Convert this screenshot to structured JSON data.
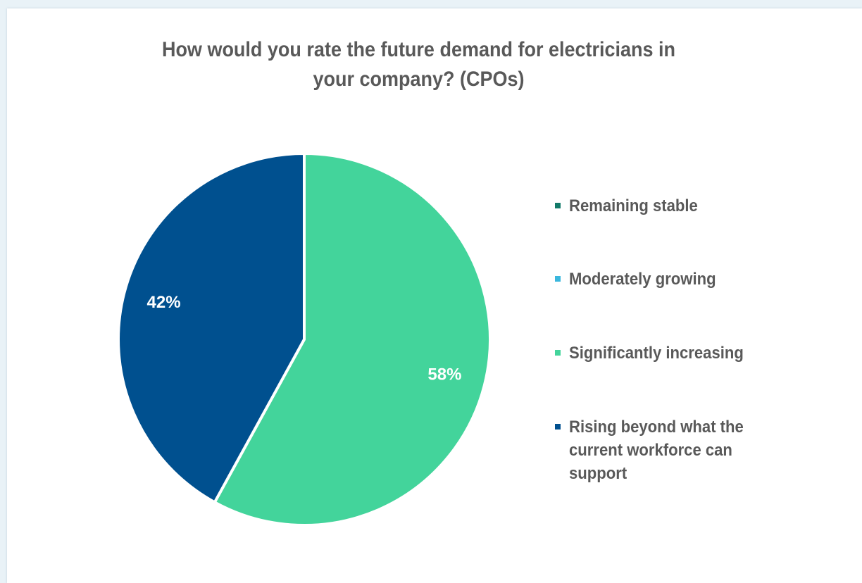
{
  "chart_data": {
    "type": "pie",
    "title": [
      "How would you rate the future demand for electricians in",
      "your company? (CPOs)"
    ],
    "slices": [
      {
        "label": "Remaining stable",
        "value": 0,
        "color": "#127a69"
      },
      {
        "label": "Moderately growing",
        "value": 0,
        "color": "#3ab7dd"
      },
      {
        "label": "Significantly increasing",
        "value": 58,
        "color": "#43d49b",
        "data_label": "58%"
      },
      {
        "label": "Rising beyond what the current workforce can support",
        "value": 42,
        "color": "#00508f",
        "data_label": "42%"
      }
    ],
    "legend_position": "right"
  }
}
